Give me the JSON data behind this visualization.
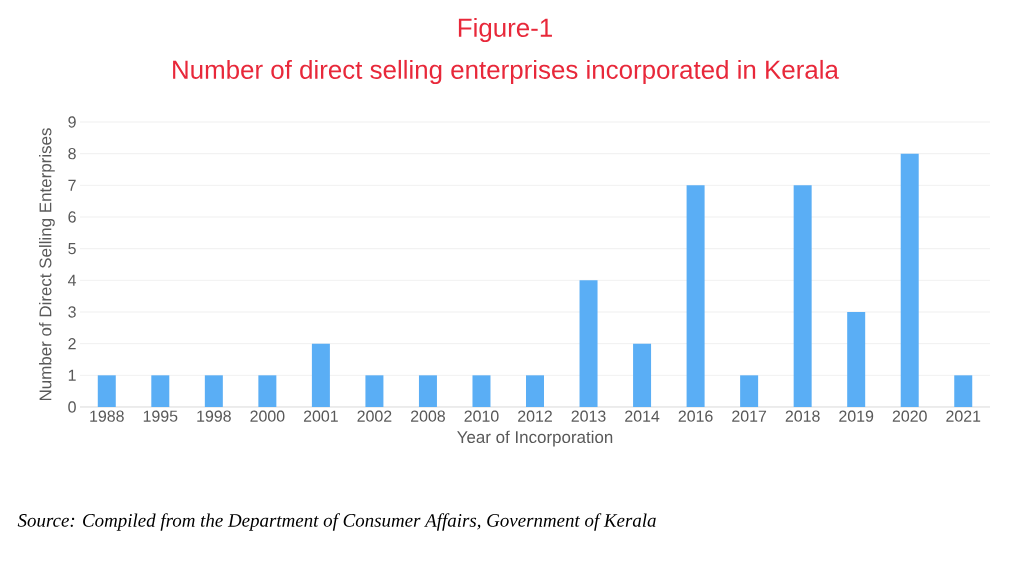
{
  "chart_data": {
    "type": "bar",
    "title": "Figure-1",
    "subtitle": "Number of direct selling enterprises incorporated in Kerala",
    "xlabel": "Year of Incorporation",
    "ylabel": "Number of Direct Selling Enterprises",
    "categories": [
      "1988",
      "1995",
      "1998",
      "2000",
      "2001",
      "2002",
      "2008",
      "2010",
      "2012",
      "2013",
      "2014",
      "2016",
      "2017",
      "2018",
      "2019",
      "2020",
      "2021"
    ],
    "values": [
      1,
      1,
      1,
      1,
      2,
      1,
      1,
      1,
      1,
      4,
      2,
      7,
      1,
      7,
      3,
      8,
      1
    ],
    "color": "#5aaef5",
    "ylim": [
      0,
      9
    ],
    "yticks": [
      0,
      1,
      2,
      3,
      4,
      5,
      6,
      7,
      8,
      9
    ],
    "grid": "y",
    "annotations": [
      "Source: Compiled from the Department of Consumer Affairs, Government of Kerala"
    ]
  }
}
